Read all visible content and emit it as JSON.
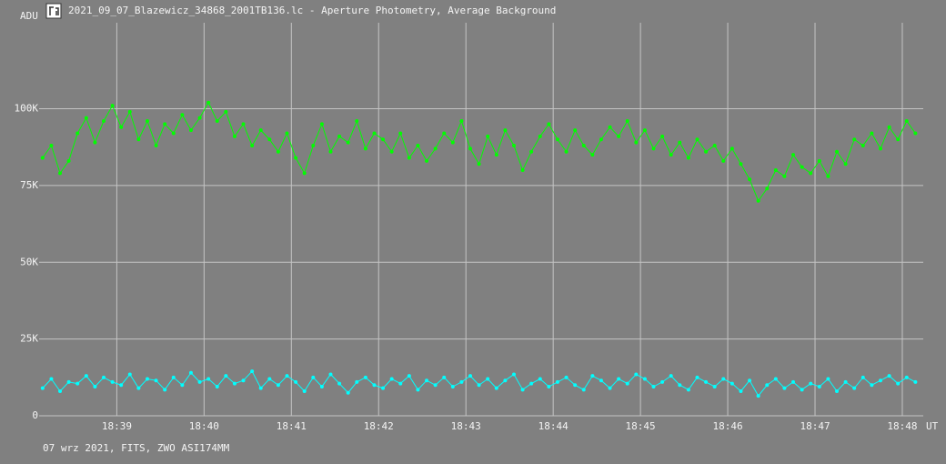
{
  "chart_data": {
    "type": "line",
    "title": "2021_09_07_Blazewicz_34868_2001TB136.lc - Aperture Photometry, Average Background",
    "y_label": "ADU",
    "x_label": "UT",
    "footer": "07 wrz 2021, FITS, ZWO ASI174MM",
    "grid": true,
    "xlim": [
      1118.11,
      1128.24
    ],
    "xticks": [
      {
        "value": 1119,
        "label": "18:39"
      },
      {
        "value": 1120,
        "label": "18:40"
      },
      {
        "value": 1121,
        "label": "18:41"
      },
      {
        "value": 1122,
        "label": "18:42"
      },
      {
        "value": 1123,
        "label": "18:43"
      },
      {
        "value": 1124,
        "label": "18:44"
      },
      {
        "value": 1125,
        "label": "18:45"
      },
      {
        "value": 1126,
        "label": "18:46"
      },
      {
        "value": 1127,
        "label": "18:47"
      },
      {
        "value": 1128,
        "label": "18:48"
      }
    ],
    "ylim": [
      0,
      128000
    ],
    "yticks": [
      0,
      {
        "value": 25000,
        "label": "25K"
      },
      {
        "value": 50000,
        "label": "50K"
      },
      {
        "value": 75000,
        "label": "75K"
      },
      {
        "value": 100000,
        "label": "100K"
      }
    ],
    "x": [
      1118.15,
      1118.25,
      1118.35,
      1118.45,
      1118.55,
      1118.65,
      1118.75,
      1118.85,
      1118.95,
      1119.05,
      1119.15,
      1119.25,
      1119.35,
      1119.45,
      1119.55,
      1119.65,
      1119.75,
      1119.85,
      1119.95,
      1120.05,
      1120.15,
      1120.25,
      1120.35,
      1120.45,
      1120.55,
      1120.65,
      1120.75,
      1120.85,
      1120.95,
      1121.05,
      1121.15,
      1121.25,
      1121.35,
      1121.45,
      1121.55,
      1121.65,
      1121.75,
      1121.85,
      1121.95,
      1122.05,
      1122.15,
      1122.25,
      1122.35,
      1122.45,
      1122.55,
      1122.65,
      1122.75,
      1122.85,
      1122.95,
      1123.05,
      1123.15,
      1123.25,
      1123.35,
      1123.45,
      1123.55,
      1123.65,
      1123.75,
      1123.85,
      1123.95,
      1124.05,
      1124.15,
      1124.25,
      1124.35,
      1124.45,
      1124.55,
      1124.65,
      1124.75,
      1124.85,
      1124.95,
      1125.05,
      1125.15,
      1125.25,
      1125.35,
      1125.45,
      1125.55,
      1125.65,
      1125.75,
      1125.85,
      1125.95,
      1126.05,
      1126.15,
      1126.25,
      1126.35,
      1126.45,
      1126.55,
      1126.65,
      1126.75,
      1126.85,
      1126.95,
      1127.05,
      1127.15,
      1127.25,
      1127.35,
      1127.45,
      1127.55,
      1127.65,
      1127.75,
      1127.85,
      1127.95,
      1128.05,
      1128.15
    ],
    "series": [
      {
        "color": "#00ff00",
        "values": [
          84000,
          88000,
          79000,
          83000,
          92000,
          97000,
          89000,
          96000,
          101000,
          94000,
          99000,
          90000,
          96000,
          88000,
          95000,
          92000,
          98000,
          93000,
          97000,
          102000,
          96000,
          99000,
          91000,
          95000,
          88000,
          93000,
          90000,
          86000,
          92000,
          84000,
          79000,
          88000,
          95000,
          86000,
          91000,
          89000,
          96000,
          87000,
          92000,
          90000,
          86000,
          92000,
          84000,
          88000,
          83000,
          87000,
          92000,
          89000,
          96000,
          87000,
          82000,
          91000,
          85000,
          93000,
          88000,
          80000,
          86000,
          91000,
          95000,
          90000,
          86000,
          93000,
          88000,
          85000,
          90000,
          94000,
          91000,
          96000,
          89000,
          93000,
          87000,
          91000,
          85000,
          89000,
          84000,
          90000,
          86000,
          88000,
          83000,
          87000,
          82000,
          77000,
          70000,
          74000,
          80000,
          78000,
          85000,
          81000,
          79000,
          83000,
          78000,
          86000,
          82000,
          90000,
          88000,
          92000,
          87000,
          94000,
          90000,
          96000,
          92000
        ]
      },
      {
        "color": "#00ffff",
        "values": [
          9000,
          12000,
          8000,
          11000,
          10500,
          13000,
          9500,
          12500,
          11000,
          10000,
          13500,
          9000,
          12000,
          11500,
          8500,
          12500,
          10000,
          14000,
          11000,
          12000,
          9500,
          13000,
          10500,
          11500,
          14500,
          9000,
          12000,
          10000,
          13000,
          11000,
          8000,
          12500,
          9500,
          13500,
          10500,
          7500,
          11000,
          12500,
          10000,
          9000,
          12000,
          10500,
          13000,
          8500,
          11500,
          10000,
          12500,
          9500,
          11000,
          13000,
          10000,
          12000,
          9000,
          11500,
          13500,
          8500,
          10500,
          12000,
          9500,
          11000,
          12500,
          10000,
          8500,
          13000,
          11500,
          9000,
          12000,
          10500,
          13500,
          12000,
          9500,
          11000,
          13000,
          10000,
          8500,
          12500,
          11000,
          9500,
          12000,
          10500,
          8000,
          11500,
          6500,
          10000,
          12000,
          9000,
          11000,
          8500,
          10500,
          9500,
          12000,
          8000,
          11000,
          9000,
          12500,
          10000,
          11500,
          13000,
          10500,
          12500,
          11000
        ]
      }
    ]
  }
}
